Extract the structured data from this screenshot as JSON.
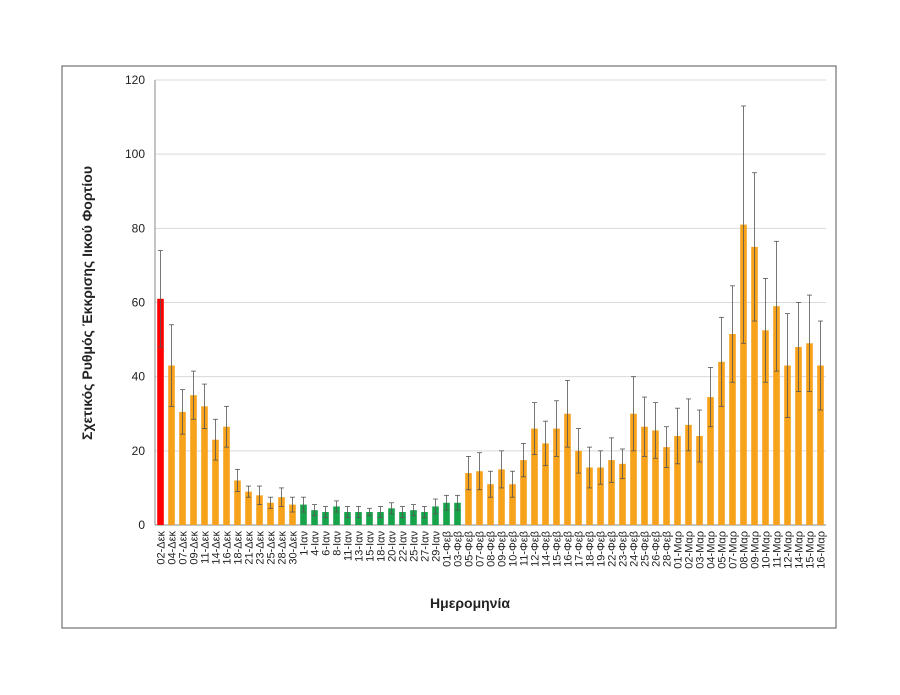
{
  "chart_data": {
    "type": "bar",
    "y_label": "Σχετικός Ρυθμός Έκκρισης Ιικού Φορτίου",
    "x_label": "Ημερομηνία",
    "categories": [
      "02-Δεκ",
      "04-Δεκ",
      "07-Δεκ",
      "09-Δεκ",
      "11-Δεκ",
      "14-Δεκ",
      "16-Δεκ",
      "18-Δεκ",
      "21-Δεκ",
      "23-Δεκ",
      "25-Δεκ",
      "28-Δεκ",
      "30-Δεκ",
      "1-Ιαν",
      "4-Ιαν",
      "6-Ιαν",
      "8-Ιαν",
      "11-Ιαν",
      "13-Ιαν",
      "15-Ιαν",
      "18-Ιαν",
      "20-Ιαν",
      "22-Ιαν",
      "25-Ιαν",
      "27-Ιαν",
      "29-Ιαν",
      "01-Φεβ",
      "03-Φεβ",
      "05-Φεβ",
      "07-Φεβ",
      "08-Φεβ",
      "09-Φεβ",
      "10-Φεβ",
      "11-Φεβ",
      "12-Φεβ",
      "14-Φεβ",
      "15-Φεβ",
      "16-Φεβ",
      "17-Φεβ",
      "18-Φεβ",
      "19-Φεβ",
      "22-Φεβ",
      "23-Φεβ",
      "24-Φεβ",
      "25-Φεβ",
      "26-Φεβ",
      "28-Φεβ",
      "01-Μαρ",
      "02-Μαρ",
      "03-Μαρ",
      "04-Μαρ",
      "05-Μαρ",
      "07-Μαρ",
      "08-Μαρ",
      "09-Μαρ",
      "10-Μαρ",
      "11-Μαρ",
      "12-Μαρ",
      "14-Μαρ",
      "15-Μαρ",
      "16-Μαρ"
    ],
    "values": [
      61,
      43,
      30.5,
      35,
      32,
      23,
      26.5,
      12,
      9,
      8,
      6,
      7.5,
      5.5,
      5.5,
      4,
      3.5,
      5,
      3.5,
      3.5,
      3.5,
      3.5,
      4.5,
      3.5,
      4,
      3.5,
      5,
      6,
      6,
      14,
      14.5,
      11,
      15,
      11,
      17.5,
      26,
      22,
      26,
      30,
      20,
      15.5,
      15.5,
      17.5,
      16.5,
      30,
      26.5,
      25.5,
      21,
      24,
      27,
      24,
      34.5,
      44,
      51.5,
      81,
      75,
      52.5,
      59,
      43,
      48,
      49,
      43
    ],
    "errors": [
      13,
      11,
      6,
      6.5,
      6,
      5.5,
      5.5,
      3,
      1.5,
      2.5,
      1.5,
      2.5,
      2,
      2,
      1.5,
      1.5,
      1.5,
      1.5,
      1.5,
      1,
      1.5,
      1.5,
      1.5,
      1.5,
      1.5,
      2,
      2,
      2,
      4.5,
      5,
      3.5,
      5,
      3.5,
      4.5,
      7,
      6,
      7.5,
      9,
      6,
      5.5,
      4.5,
      6,
      4,
      10,
      8,
      7.5,
      5.5,
      7.5,
      7,
      7,
      8,
      12,
      13,
      32,
      20,
      14,
      17.5,
      14,
      12,
      13,
      12
    ],
    "colors": [
      "#ff0000",
      "#f7a21b",
      "#f7a21b",
      "#f7a21b",
      "#f7a21b",
      "#f7a21b",
      "#f7a21b",
      "#f7a21b",
      "#f7a21b",
      "#f7a21b",
      "#f7a21b",
      "#f7a21b",
      "#f7a21b",
      "#16a34a",
      "#16a34a",
      "#16a34a",
      "#16a34a",
      "#16a34a",
      "#16a34a",
      "#16a34a",
      "#16a34a",
      "#16a34a",
      "#16a34a",
      "#16a34a",
      "#16a34a",
      "#16a34a",
      "#16a34a",
      "#16a34a",
      "#f7a21b",
      "#f7a21b",
      "#f7a21b",
      "#f7a21b",
      "#f7a21b",
      "#f7a21b",
      "#f7a21b",
      "#f7a21b",
      "#f7a21b",
      "#f7a21b",
      "#f7a21b",
      "#f7a21b",
      "#f7a21b",
      "#f7a21b",
      "#f7a21b",
      "#f7a21b",
      "#f7a21b",
      "#f7a21b",
      "#f7a21b",
      "#f7a21b",
      "#f7a21b",
      "#f7a21b",
      "#f7a21b",
      "#f7a21b",
      "#f7a21b",
      "#f7a21b",
      "#f7a21b",
      "#f7a21b",
      "#f7a21b",
      "#f7a21b",
      "#f7a21b",
      "#f7a21b",
      "#f7a21b"
    ],
    "ylim": [
      0,
      120
    ],
    "yticks": [
      0,
      20,
      40,
      60,
      80,
      100,
      120
    ],
    "grid": true
  }
}
